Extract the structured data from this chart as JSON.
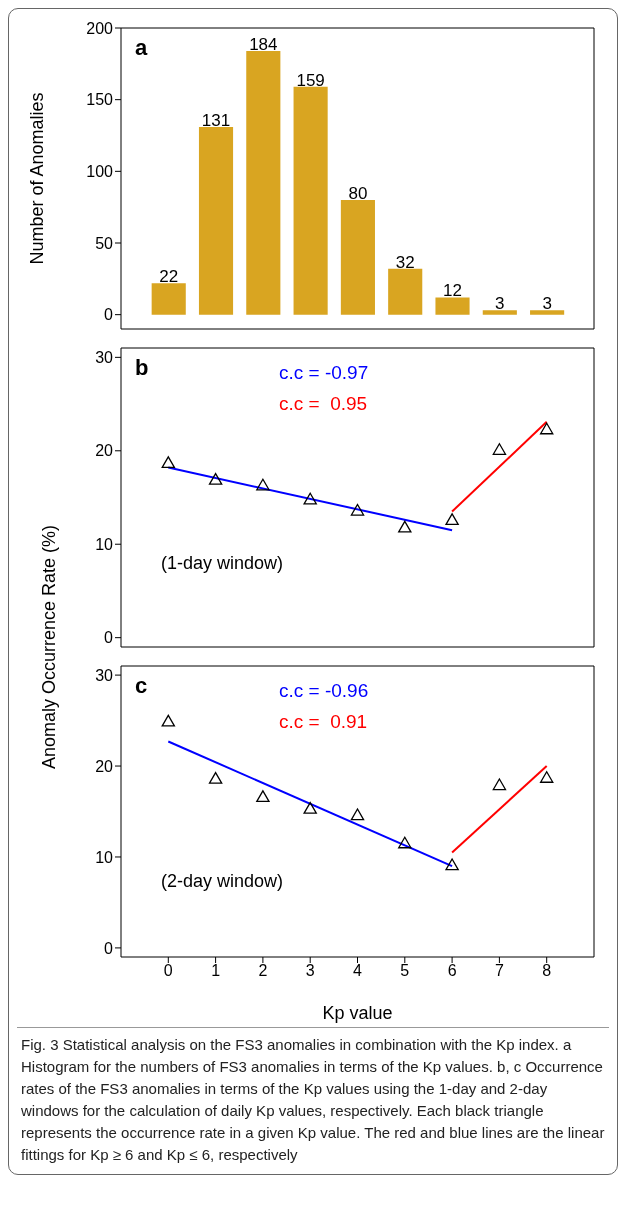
{
  "chart_data": [
    {
      "type": "bar",
      "ylabel": "Number of Anomalies",
      "x": [
        0,
        1,
        2,
        3,
        4,
        5,
        6,
        7,
        8
      ],
      "values": [
        22,
        131,
        184,
        159,
        80,
        32,
        12,
        3,
        3
      ],
      "color": "#d9a521",
      "data_labels": true,
      "xlim": [
        -1,
        9
      ],
      "xticks": [
        0,
        1,
        2,
        3,
        4,
        5,
        6,
        7,
        8
      ],
      "ylim": [
        -10,
        200
      ],
      "yticks": [
        0,
        50,
        100,
        150,
        200
      ],
      "tick_labels": "y",
      "annotations": [
        "a"
      ]
    },
    {
      "type": "scatter",
      "ylabel": "Anomaly Occurrence Rate (%)",
      "legend": "top",
      "xlim": [
        -1,
        9
      ],
      "xticks": [
        0,
        1,
        2,
        3,
        4,
        5,
        6,
        7,
        8
      ],
      "ylim": [
        -1,
        31
      ],
      "yticks": [
        0,
        10,
        20,
        30
      ],
      "tick_labels": "y",
      "annotations": [
        "b",
        "(1-day window)"
      ],
      "series": [
        {
          "color": "#000000",
          "marker": "triangle",
          "x": [
            0,
            1,
            2,
            3,
            4,
            5,
            6,
            7,
            8
          ],
          "values": [
            18.6,
            16.8,
            16.2,
            14.7,
            13.5,
            11.7,
            12.5,
            20.0,
            22.2
          ]
        },
        {
          "type": "line",
          "marker": "none",
          "name": "c.c = -0.97",
          "color": "#0000ff",
          "x": [
            0,
            6
          ],
          "values": [
            18.2,
            11.5
          ]
        },
        {
          "type": "line",
          "marker": "none",
          "name": "c.c =  0.95",
          "color": "#ff0000",
          "x": [
            6,
            8
          ],
          "values": [
            13.5,
            23.1
          ]
        }
      ]
    },
    {
      "type": "scatter",
      "xlabel": "Kp value",
      "legend": "top",
      "xlim": [
        -1,
        9
      ],
      "xticks": [
        0,
        1,
        2,
        3,
        4,
        5,
        6,
        7,
        8
      ],
      "ylim": [
        -1,
        31
      ],
      "yticks": [
        0,
        10,
        20,
        30
      ],
      "annotations": [
        "c",
        "(2-day window)",
        "Fig. 3  Statistical analysis on the FS3 anomalies in combination with the Kp index. a Histogram for the numbers of FS3 anomalies in terms of the Kp values. b, c Occurrence rates of the FS3 anomalies in terms of the Kp values using the 1-day and 2-day windows for the calculation of daily Kp values, respectively. Each black triangle represents the occurrence rate in a given Kp value. The red and blue lines are the linear fittings for Kp ≥ 6 and Kp ≤ 6, respectively"
      ],
      "series": [
        {
          "color": "#000000",
          "marker": "triangle",
          "x": [
            0,
            1,
            2,
            3,
            4,
            5,
            6,
            7,
            8
          ],
          "values": [
            24.8,
            18.5,
            16.5,
            15.2,
            14.5,
            11.4,
            9.0,
            17.8,
            18.6
          ]
        },
        {
          "type": "line",
          "marker": "none",
          "name": "c.c = -0.96",
          "color": "#0000ff",
          "x": [
            0,
            6
          ],
          "values": [
            22.7,
            9.0
          ]
        },
        {
          "type": "line",
          "marker": "none",
          "name": "c.c =  0.91",
          "color": "#ff0000",
          "x": [
            6,
            8
          ],
          "values": [
            10.5,
            20.0
          ]
        }
      ]
    }
  ]
}
